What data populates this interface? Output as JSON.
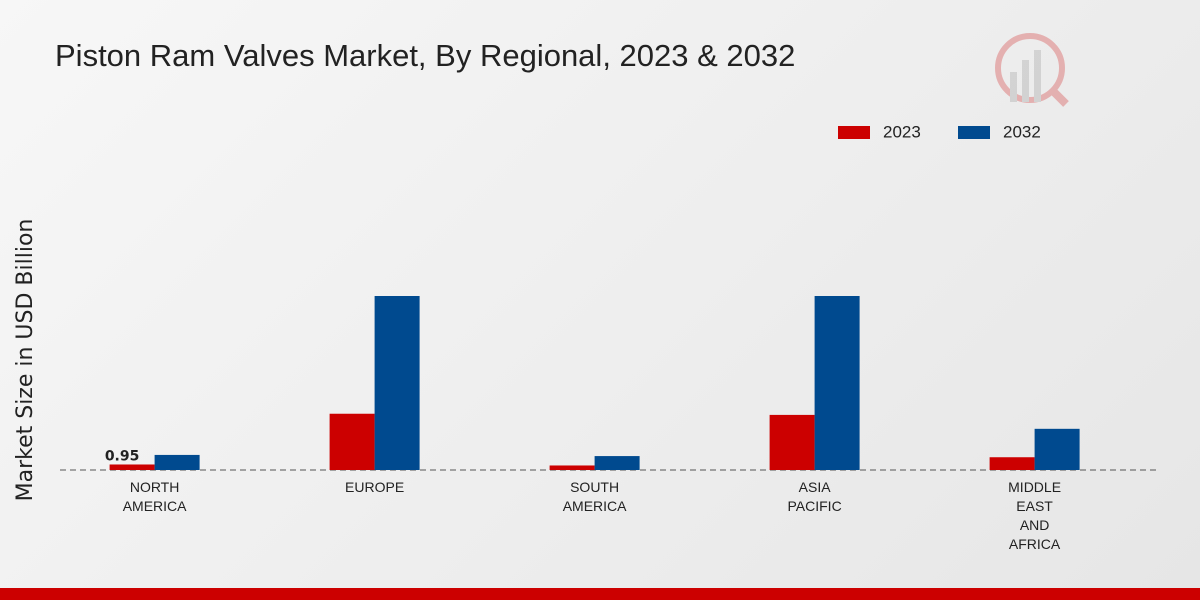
{
  "chart_data": {
    "type": "bar",
    "title": "Piston Ram Valves Market, By Regional, 2023 & 2032",
    "y_label": "Market Size in USD Billion",
    "categories": [
      "NORTH\nAMERICA",
      "EUROPE",
      "SOUTH\nAMERICA",
      "ASIA\nPACIFIC",
      "MIDDLE\nEAST\nAND\nAFRICA"
    ],
    "series": [
      {
        "name": "2023",
        "color": "#cc0000",
        "values": [
          0.95,
          9.7,
          0.78,
          9.5,
          2.2
        ],
        "value_labels": [
          "0.95",
          null,
          null,
          null,
          null
        ]
      },
      {
        "name": "2032",
        "color": "#004a8f",
        "values": [
          2.6,
          30.0,
          2.4,
          30.0,
          7.1
        ]
      }
    ],
    "legend": "top-right"
  }
}
